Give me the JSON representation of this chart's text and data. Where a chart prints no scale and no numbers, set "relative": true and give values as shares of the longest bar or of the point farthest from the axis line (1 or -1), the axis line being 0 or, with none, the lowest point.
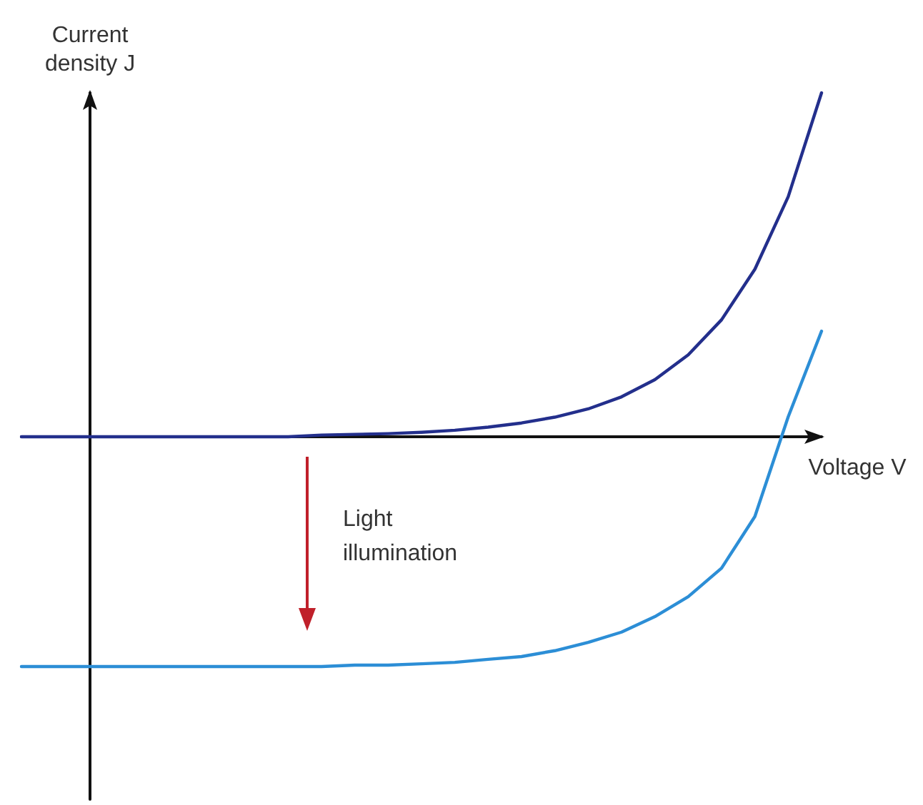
{
  "chart_data": {
    "type": "line",
    "relative": true,
    "xlabel": "Voltage V",
    "ylabel": "Current density J",
    "annotations": [
      "Light illumination"
    ],
    "categories": [
      null,
      null,
      null,
      null,
      null,
      null,
      null,
      null,
      null,
      null,
      null,
      null,
      null,
      null,
      null,
      null,
      null,
      null,
      null,
      null,
      null,
      null,
      null,
      null,
      null
    ],
    "marker": "none",
    "grid": false,
    "tick_labels": false,
    "series": [
      {
        "color": "#232f8c",
        "values": [
          0,
          0,
          0,
          0,
          0,
          0,
          0,
          0,
          0,
          0.005,
          0.007,
          0.009,
          0.013,
          0.019,
          0.028,
          0.04,
          0.057,
          0.081,
          0.116,
          0.166,
          0.238,
          0.34,
          0.487,
          0.698,
          1
        ]
      },
      {
        "color": "#2c8ed6",
        "values": [
          -0.668,
          -0.668,
          -0.668,
          -0.668,
          -0.668,
          -0.668,
          -0.668,
          -0.668,
          -0.668,
          -0.668,
          -0.664,
          -0.664,
          -0.66,
          -0.656,
          -0.647,
          -0.639,
          -0.622,
          -0.598,
          -0.568,
          -0.523,
          -0.465,
          -0.382,
          -0.232,
          0.058,
          0.307
        ]
      }
    ]
  }
}
